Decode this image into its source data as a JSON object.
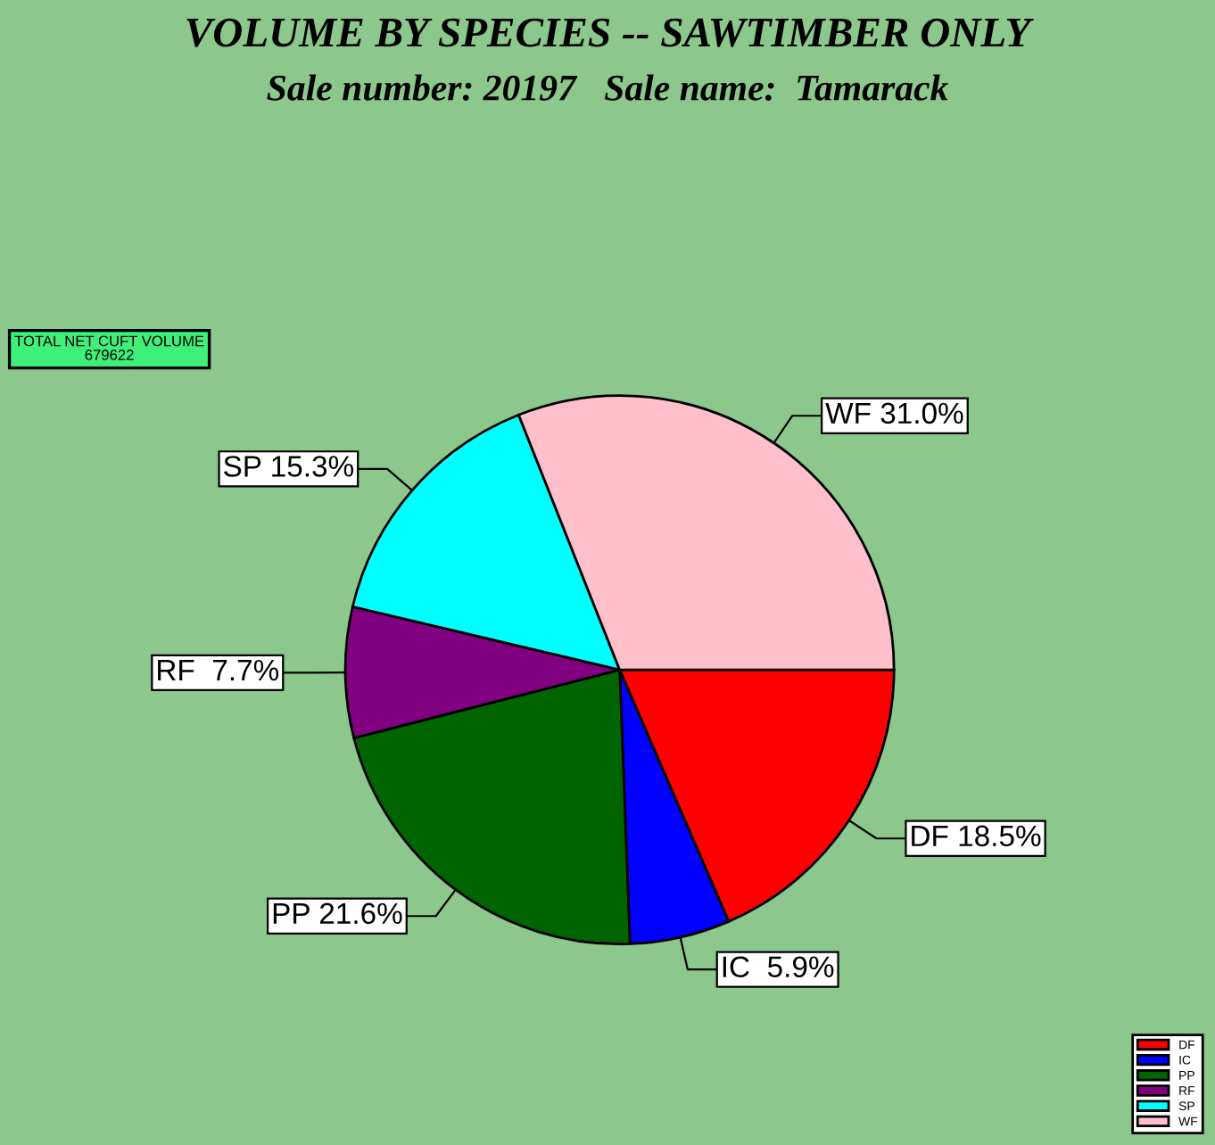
{
  "chart_data": {
    "type": "pie",
    "title": "VOLUME BY SPECIES -- SAWTIMBER ONLY",
    "subtitle": "Sale number: 20197   Sale name:  Tamarack",
    "categories": [
      "DF",
      "IC",
      "PP",
      "RF",
      "SP",
      "WF"
    ],
    "values": [
      18.5,
      5.9,
      21.6,
      7.7,
      15.3,
      31.0
    ],
    "value_labels": [
      "DF 18.5%",
      "IC  5.9%",
      "PP 21.6%",
      "RF  7.7%",
      "SP 15.3%",
      "WF 31.0%"
    ],
    "colors": [
      "#ff0000",
      "#0000ff",
      "#006400",
      "#800080",
      "#00ffff",
      "#ffc0cb"
    ],
    "annotations": [
      "TOTAL NET CUFT VOLUME\n679622"
    ],
    "legend": "bottom right"
  }
}
